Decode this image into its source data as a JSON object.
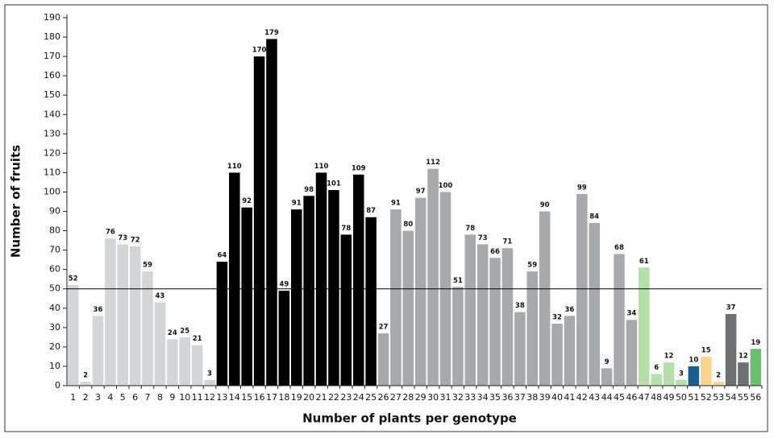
{
  "chart_data": {
    "type": "bar",
    "x_label": "Number of plants per genotype",
    "y_label": "Number of fruits",
    "categories": [
      "1",
      "2",
      "3",
      "4",
      "5",
      "6",
      "7",
      "8",
      "9",
      "10",
      "11",
      "12",
      "13",
      "14",
      "15",
      "16",
      "17",
      "18",
      "19",
      "20",
      "21",
      "22",
      "23",
      "24",
      "25",
      "26",
      "27",
      "28",
      "29",
      "30",
      "31",
      "32",
      "33",
      "34",
      "35",
      "36",
      "37",
      "38",
      "39",
      "40",
      "41",
      "42",
      "43",
      "44",
      "45",
      "46",
      "47",
      "48",
      "49",
      "50",
      "51",
      "52",
      "53",
      "54",
      "55",
      "56"
    ],
    "values": [
      52,
      2,
      36,
      76,
      73,
      72,
      59,
      43,
      24,
      25,
      21,
      3,
      64,
      110,
      92,
      170,
      179,
      49,
      91,
      98,
      110,
      101,
      78,
      109,
      87,
      27,
      91,
      80,
      97,
      112,
      100,
      51,
      78,
      73,
      66,
      71,
      38,
      59,
      90,
      32,
      36,
      99,
      84,
      9,
      68,
      34,
      61,
      6,
      12,
      3,
      10,
      15,
      2,
      37,
      12,
      19
    ],
    "colors": [
      "#d4d5d7",
      "#d4d5d7",
      "#d4d5d7",
      "#d4d5d7",
      "#d4d5d7",
      "#d4d5d7",
      "#d4d5d7",
      "#d4d5d7",
      "#d4d5d7",
      "#d4d5d7",
      "#d4d5d7",
      "#d4d5d7",
      "#000000",
      "#000000",
      "#000000",
      "#000000",
      "#000000",
      "#000000",
      "#000000",
      "#000000",
      "#000000",
      "#000000",
      "#000000",
      "#000000",
      "#000000",
      "#a8a9ac",
      "#a8a9ac",
      "#a8a9ac",
      "#a8a9ac",
      "#a8a9ac",
      "#a8a9ac",
      "#a8a9ac",
      "#a8a9ac",
      "#a8a9ac",
      "#a8a9ac",
      "#a8a9ac",
      "#a8a9ac",
      "#a8a9ac",
      "#a8a9ac",
      "#a8a9ac",
      "#a8a9ac",
      "#a8a9ac",
      "#a8a9ac",
      "#a8a9ac",
      "#a8a9ac",
      "#a8a9ac",
      "#b6e0aa",
      "#b6e0aa",
      "#b6e0aa",
      "#b6e0aa",
      "#1b5e8e",
      "#fdd48c",
      "#fdd48c",
      "#6e6f72",
      "#6e6f72",
      "#6cbf6c"
    ],
    "reference_line": 50,
    "ylim": [
      0,
      190
    ],
    "yticks": [
      0,
      10,
      20,
      30,
      40,
      50,
      60,
      70,
      80,
      90,
      100,
      110,
      120,
      130,
      140,
      150,
      160,
      170,
      180,
      190
    ]
  }
}
